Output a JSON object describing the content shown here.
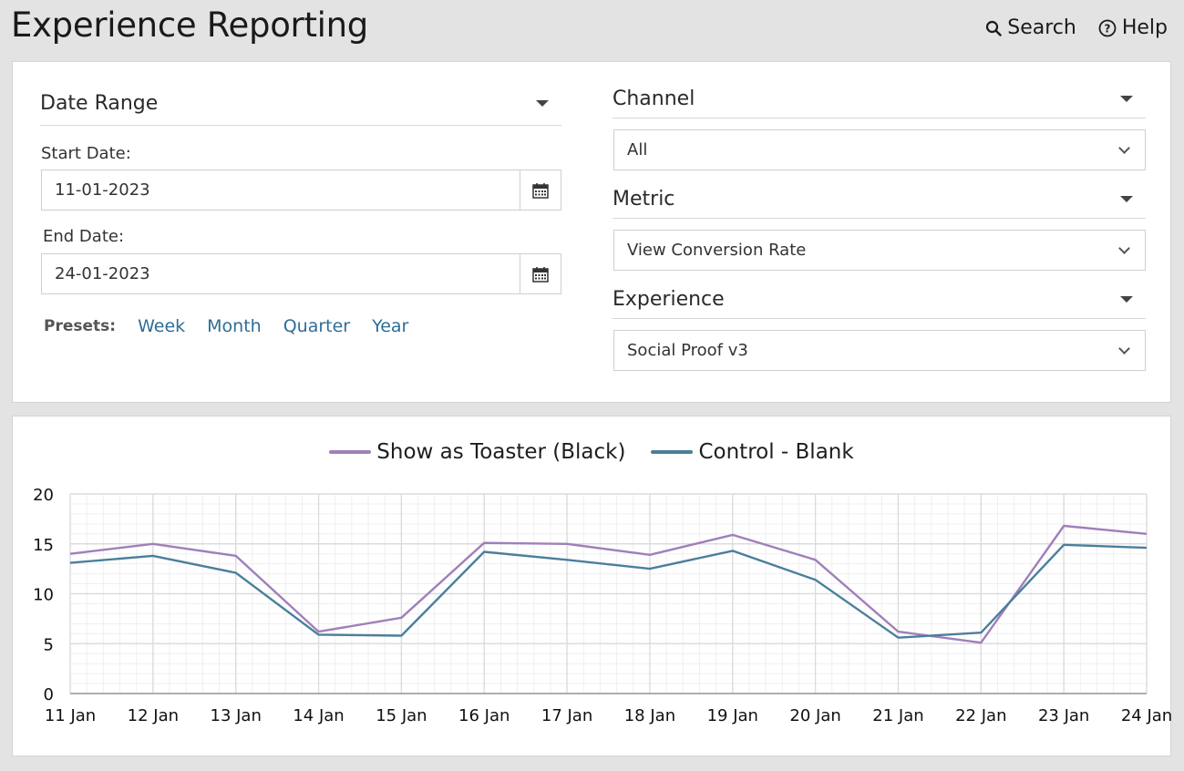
{
  "app": {
    "title": "Experience Reporting"
  },
  "nav": {
    "search": "Search",
    "help": "Help"
  },
  "filters": {
    "date_range": {
      "title": "Date Range",
      "start_label": "Start Date:",
      "start_value": "11-01-2023",
      "end_label": "End Date:",
      "end_value": "24-01-2023",
      "presets_label": "Presets:",
      "presets": [
        "Week",
        "Month",
        "Quarter",
        "Year"
      ]
    },
    "channel": {
      "title": "Channel",
      "value": "All"
    },
    "metric": {
      "title": "Metric",
      "value": "View Conversion Rate"
    },
    "experience": {
      "title": "Experience",
      "value": "Social Proof v3"
    }
  },
  "chart_data": {
    "type": "line",
    "x": [
      "11 Jan",
      "12 Jan",
      "13 Jan",
      "14 Jan",
      "15 Jan",
      "16 Jan",
      "17 Jan",
      "18 Jan",
      "19 Jan",
      "20 Jan",
      "21 Jan",
      "22 Jan",
      "23 Jan",
      "24 Jan"
    ],
    "series": [
      {
        "name": "Show as Toaster (Black)",
        "color": "#a07fba",
        "values": [
          14.0,
          15.0,
          13.8,
          6.2,
          7.6,
          15.1,
          15.0,
          13.9,
          15.9,
          13.4,
          6.2,
          5.1,
          16.8,
          16.0
        ]
      },
      {
        "name": "Control - Blank",
        "color": "#4a7f9c",
        "values": [
          13.1,
          13.8,
          12.1,
          5.9,
          5.8,
          14.2,
          13.4,
          12.5,
          14.3,
          11.4,
          5.6,
          6.1,
          14.9,
          14.6
        ]
      }
    ],
    "yticks": [
      "0",
      "5",
      "10",
      "15",
      "20"
    ],
    "ylim": [
      0,
      20
    ],
    "grid": true,
    "legend": "top-center",
    "xlabel": "",
    "ylabel": ""
  }
}
